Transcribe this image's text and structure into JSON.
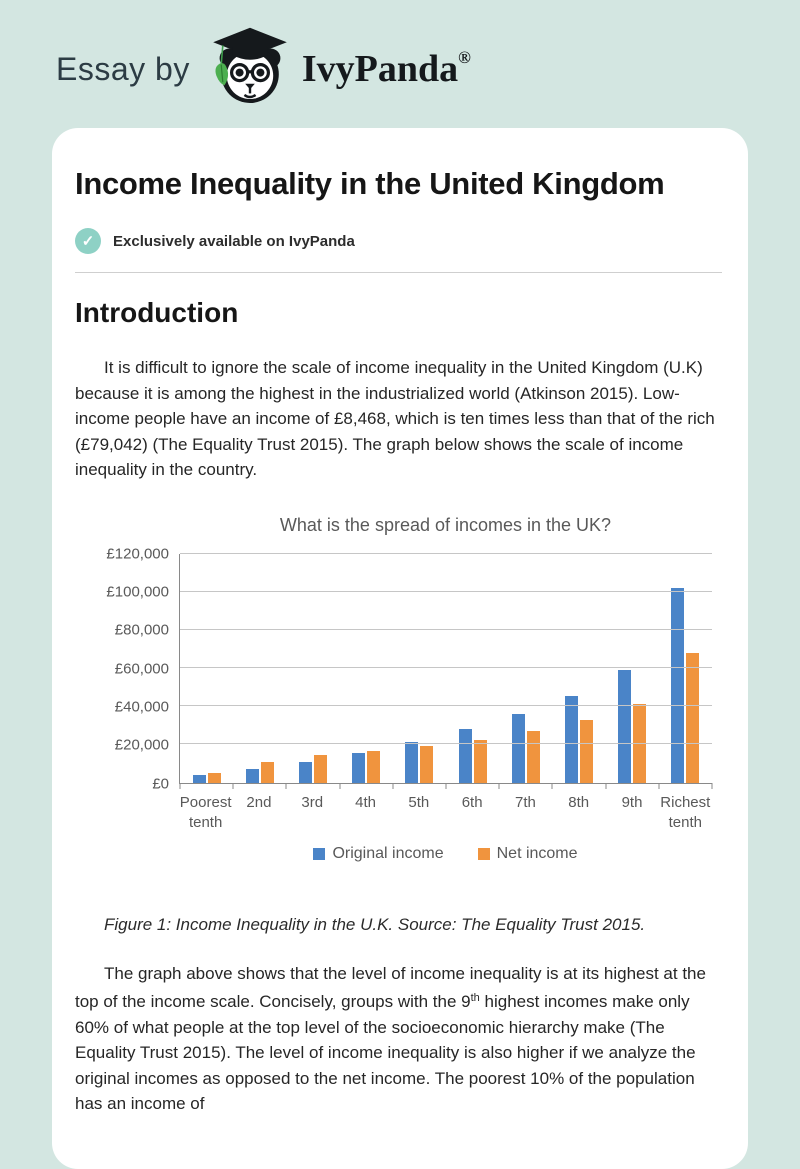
{
  "page": {
    "background_color": "#d3e6e1",
    "card_color": "#ffffff",
    "accent_teal": "#8ed1c5"
  },
  "header": {
    "prefix": "Essay by",
    "brand": "IvyPanda",
    "registered_mark": "®"
  },
  "article": {
    "title": "Income Inequality in the United Kingdom",
    "badge_label": "Exclusively available on IvyPanda",
    "section_heading": "Introduction",
    "paragraph1": "It is difficult to ignore the scale of income inequality in the United Kingdom (U.K) because it is among the highest in the industrialized world (Atkinson 2015). Low-income people have an income of £8,468, which is ten times less than that of the rich (£79,042) (The Equality Trust 2015). The graph below shows the scale of income inequality in the country.",
    "figure_caption": "Figure 1: Income Inequality in the U.K. Source: The Equality Trust 2015.",
    "paragraph2": {
      "before": "The graph above shows that the level of income inequality is at its highest at the top of the income scale. Concisely, groups with the 9",
      "sup": "th",
      "after": " highest incomes make only 60% of what people at the top level of the socioeconomic hierarchy make (The Equality Trust 2015). The level of income inequality is also higher if we analyze the original incomes as opposed to the net income. The poorest 10% of the population has an income of"
    }
  },
  "chart_data": {
    "type": "bar",
    "title": "What is the spread of incomes in the UK?",
    "categories": [
      "Poorest tenth",
      "2nd",
      "3rd",
      "4th",
      "5th",
      "6th",
      "7th",
      "8th",
      "9th",
      "Richest tenth"
    ],
    "series": [
      {
        "name": "Original income",
        "color": "#4a84c8",
        "values": [
          4000,
          7000,
          11000,
          15500,
          21000,
          28000,
          36000,
          45500,
          59000,
          102000
        ]
      },
      {
        "name": "Net income",
        "color": "#f0943e",
        "values": [
          5000,
          10500,
          14500,
          16500,
          19000,
          22500,
          27000,
          33000,
          41000,
          68000
        ]
      }
    ],
    "ylim": [
      0,
      120000
    ],
    "ytick_step": 20000,
    "ytick_labels": [
      "£0",
      "£20,000",
      "£40,000",
      "£60,000",
      "£80,000",
      "£100,000",
      "£120,000"
    ],
    "grid": true,
    "legend_position": "bottom",
    "xlabel": "",
    "ylabel": ""
  }
}
